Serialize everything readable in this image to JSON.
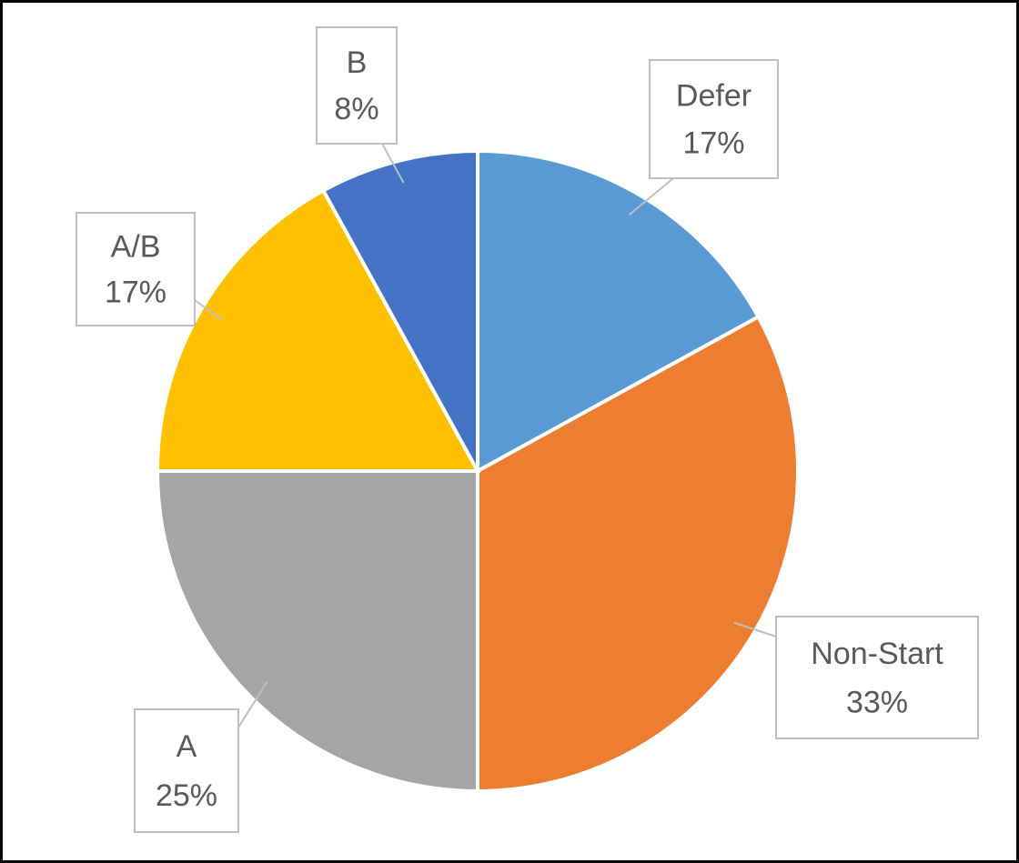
{
  "chart_data": {
    "type": "pie",
    "categories": [
      "Defer",
      "Non-Start",
      "A",
      "A/B",
      "B"
    ],
    "values": [
      17,
      33,
      25,
      17,
      8
    ],
    "value_labels": [
      "17%",
      "33%",
      "25%",
      "17%",
      "8%"
    ],
    "colors": [
      "#5b9bd5",
      "#ed7d31",
      "#a5a5a5",
      "#ffc000",
      "#4472c4"
    ]
  }
}
